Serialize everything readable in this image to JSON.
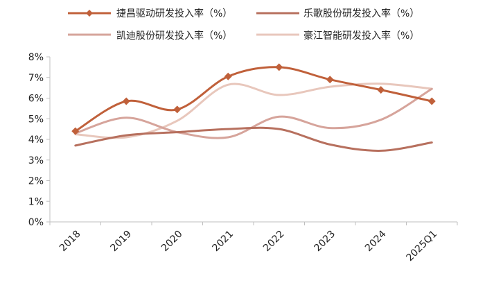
{
  "chart_data": {
    "type": "line",
    "title": "",
    "xlabel": "",
    "ylabel": "",
    "categories": [
      "2018",
      "2019",
      "2020",
      "2021",
      "2022",
      "2023",
      "2024",
      "2025Q1"
    ],
    "ylim": [
      0,
      8
    ],
    "yticks": [
      "0%",
      "1%",
      "2%",
      "3%",
      "4%",
      "5%",
      "6%",
      "7%",
      "8%"
    ],
    "grid": false,
    "legend_position": "top",
    "series": [
      {
        "name": "捷昌驱动研发投入率（%）",
        "values": [
          4.4,
          5.85,
          5.45,
          7.05,
          7.5,
          6.9,
          6.4,
          5.85
        ],
        "color": "#C0603A",
        "marker": "diamond",
        "smooth": true
      },
      {
        "name": "乐歌股份研发投入率（%）",
        "values": [
          3.7,
          4.2,
          4.35,
          4.5,
          4.5,
          3.75,
          3.45,
          3.85
        ],
        "color": "#B7705E",
        "marker": "none",
        "smooth": true
      },
      {
        "name": "凯迪股份研发投入率（%）",
        "values": [
          4.3,
          5.05,
          4.35,
          4.1,
          5.1,
          4.55,
          4.95,
          6.45
        ],
        "color": "#D6A49B",
        "marker": "none",
        "smooth": true
      },
      {
        "name": "豪江智能研发投入率（%）",
        "values": [
          4.25,
          4.1,
          4.9,
          6.65,
          6.15,
          6.55,
          6.7,
          6.45
        ],
        "color": "#E8C7BC",
        "marker": "none",
        "smooth": true
      }
    ]
  }
}
